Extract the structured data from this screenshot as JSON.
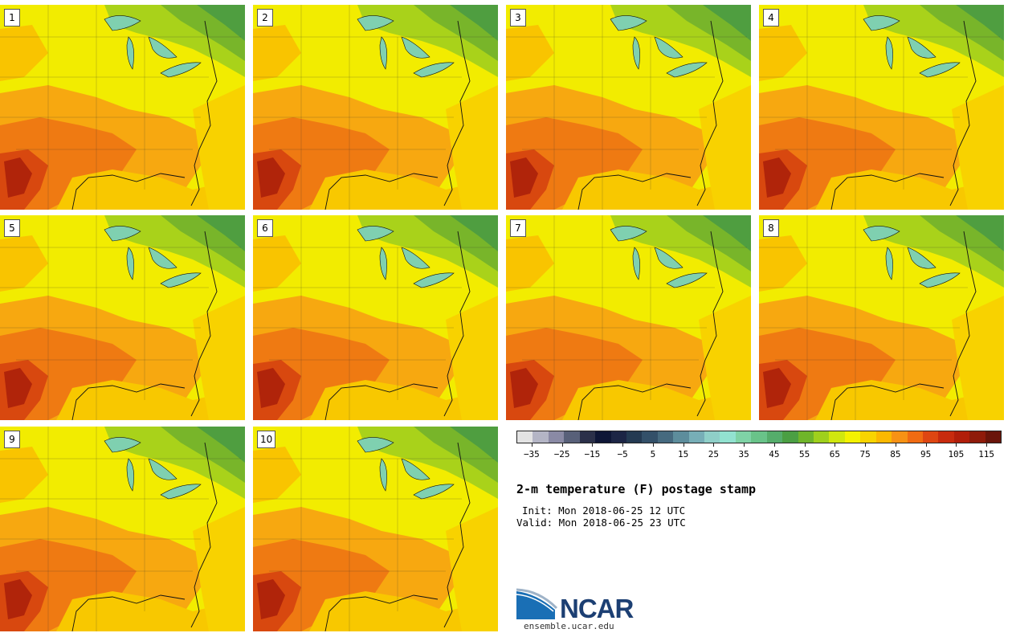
{
  "panels": [
    {
      "label": "1"
    },
    {
      "label": "2"
    },
    {
      "label": "3"
    },
    {
      "label": "4"
    },
    {
      "label": "5"
    },
    {
      "label": "6"
    },
    {
      "label": "7"
    },
    {
      "label": "8"
    },
    {
      "label": "9"
    },
    {
      "label": "10"
    }
  ],
  "colorbar": {
    "colors": [
      "#e3e3e3",
      "#b4b5c5",
      "#8a8aa5",
      "#586079",
      "#2b3049",
      "#0e1636",
      "#1c2545",
      "#243a52",
      "#335069",
      "#466a7f",
      "#5d8d9c",
      "#77aeb7",
      "#8fcfc8",
      "#92e2d0",
      "#7fd3a6",
      "#69c389",
      "#55ad6b",
      "#4b9f43",
      "#6fb52a",
      "#9fd01c",
      "#d0e70f",
      "#f4f200",
      "#f8d400",
      "#fbb800",
      "#f79214",
      "#f06b12",
      "#de4612",
      "#c82b0e",
      "#b11e0a",
      "#8f1b0a",
      "#6a150a"
    ],
    "tick_labels": [
      "-35",
      "-25",
      "-15",
      "-5",
      "5",
      "15",
      "25",
      "35",
      "45",
      "55",
      "65",
      "75",
      "85",
      "95",
      "105",
      "115"
    ],
    "range": [
      -40,
      120
    ]
  },
  "title": "2-m temperature (F) postage stamp",
  "init": "Init: Mon 2018-06-25 12 UTC",
  "valid": "Valid: Mon 2018-06-25 23 UTC",
  "logo": {
    "text": "NCAR",
    "url": "ensemble.ucar.edu"
  }
}
